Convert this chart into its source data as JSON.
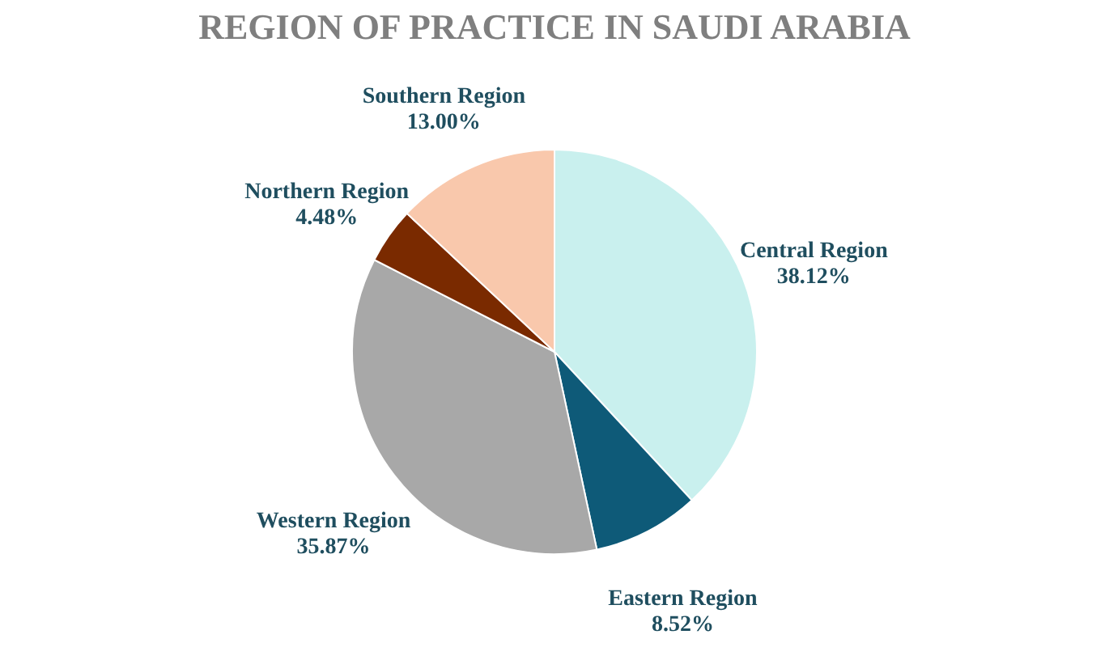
{
  "chart_data": {
    "type": "pie",
    "title": "REGION OF PRACTICE IN SAUDI ARABIA",
    "categories": [
      "Central Region",
      "Eastern Region",
      "Western Region",
      "Northern Region",
      "Southern Region"
    ],
    "values": [
      38.12,
      8.52,
      35.87,
      4.48,
      13.0
    ],
    "value_labels": [
      "38.12%",
      "8.52%",
      "35.87%",
      "4.48%",
      "13.00%"
    ],
    "colors": [
      "#c9f0ee",
      "#0e5a78",
      "#a8a8a8",
      "#7a2a00",
      "#f9c8ac"
    ],
    "legend": false
  }
}
